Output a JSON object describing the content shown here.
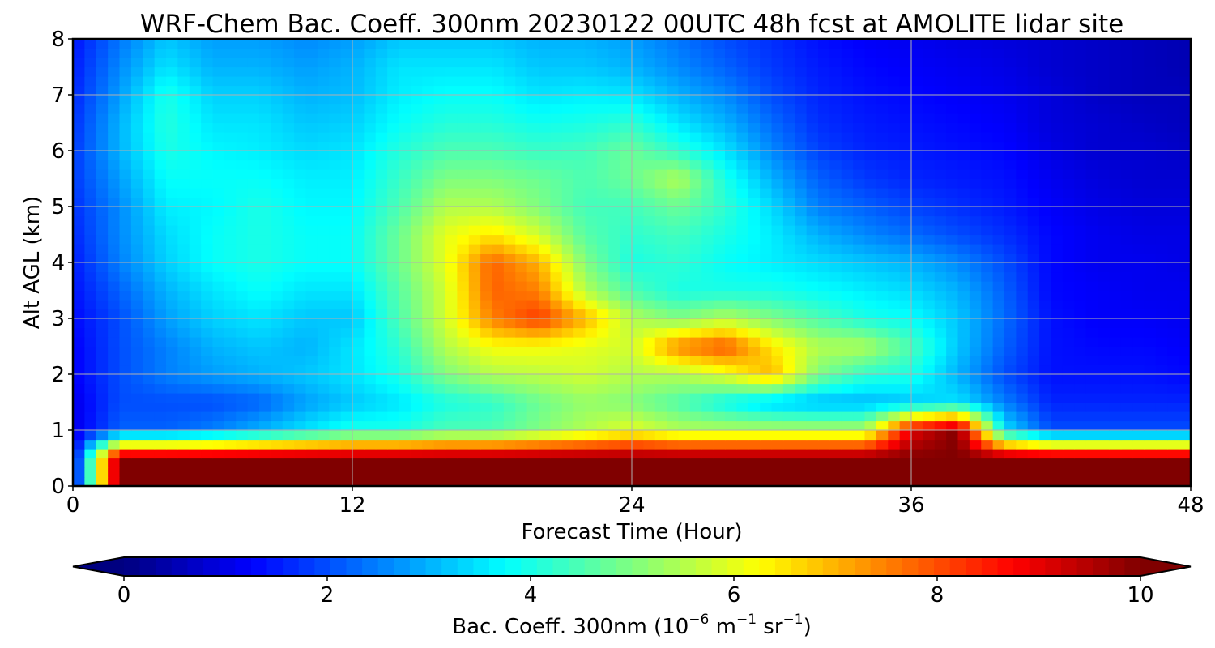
{
  "chart_data": {
    "type": "heatmap",
    "title": "WRF-Chem Bac. Coeff. 300nm  20230122 00UTC 48h fcst at AMOLITE lidar site",
    "xlabel": "Forecast Time (Hour)",
    "ylabel": "Alt AGL (km)",
    "xlim": [
      0,
      48
    ],
    "ylim": [
      0,
      8
    ],
    "x_ticks": [
      "0",
      "12",
      "24",
      "36",
      "48"
    ],
    "y_ticks": [
      "0",
      "1",
      "2",
      "3",
      "4",
      "5",
      "6",
      "7",
      "8"
    ],
    "grid": true,
    "colormap": "jet",
    "colorbar": {
      "label_main": "Bac. Coeff. 300nm  (10",
      "label_exp1": "−6",
      "label_mid": " m",
      "label_exp2": "−1",
      "label_mid2": " sr",
      "label_exp3": "−1",
      "label_end": ")",
      "ticks": [
        "0",
        "2",
        "4",
        "6",
        "8",
        "10"
      ],
      "range": [
        0,
        10
      ],
      "extend": "both"
    },
    "x": [
      0,
      2,
      4,
      6,
      8,
      10,
      12,
      14,
      16,
      18,
      20,
      22,
      24,
      26,
      28,
      30,
      32,
      34,
      36,
      38,
      40,
      42,
      44,
      46,
      48
    ],
    "y": [
      0,
      0.5,
      1,
      1.5,
      2,
      2.5,
      3,
      3.5,
      4,
      4.5,
      5,
      5.5,
      6,
      6.5,
      7,
      7.5,
      8
    ],
    "values": [
      [
        1,
        10,
        10,
        10,
        10,
        10,
        10,
        10,
        10,
        10,
        10,
        10,
        10,
        10,
        10,
        10,
        10,
        10,
        10,
        10,
        10,
        10,
        10,
        10,
        10
      ],
      [
        1,
        10,
        10,
        10,
        10,
        10,
        10,
        10,
        10,
        10,
        10,
        10,
        10,
        10,
        10,
        10,
        10,
        10,
        10,
        10,
        10,
        10,
        10,
        10,
        10
      ],
      [
        1,
        2.2,
        2.2,
        2.5,
        3,
        3.5,
        4,
        4,
        4.5,
        4.5,
        5,
        5.5,
        6,
        5.5,
        5.5,
        5.5,
        5.5,
        5.5,
        9,
        10,
        3.5,
        2,
        2,
        2,
        2
      ],
      [
        1,
        2,
        2,
        2,
        2.2,
        2.8,
        3.2,
        3.5,
        4,
        4.2,
        4.8,
        5.2,
        5,
        4.5,
        3.8,
        3.2,
        3,
        3,
        3.2,
        3.5,
        2.5,
        1.6,
        1.6,
        1.6,
        1.6
      ],
      [
        1.2,
        2,
        2.5,
        2.8,
        3,
        3.2,
        3.5,
        4,
        5,
        5.5,
        5.6,
        5.8,
        5.5,
        5.5,
        6,
        7,
        5,
        4.2,
        4,
        3,
        2,
        1.4,
        1.4,
        1.4,
        1.3
      ],
      [
        1.2,
        2,
        2.5,
        3,
        3.2,
        3,
        3.5,
        4.2,
        5.5,
        6.2,
        6.2,
        6,
        5.8,
        7.5,
        8,
        6.5,
        5.5,
        5.5,
        4.5,
        3.2,
        2.2,
        1.4,
        1.3,
        1.3,
        1.2
      ],
      [
        1.3,
        2,
        2.8,
        3.3,
        3.5,
        3.2,
        3.2,
        4.5,
        5.8,
        7.5,
        8.2,
        7,
        5.5,
        5,
        5.5,
        5,
        4.5,
        4,
        3.8,
        3.2,
        2.3,
        1.4,
        1.2,
        1.2,
        1.1
      ],
      [
        1.4,
        2.2,
        3,
        3.5,
        3.8,
        3.5,
        3.5,
        4.6,
        5.8,
        7.8,
        7.5,
        5.5,
        4.5,
        4,
        4,
        4,
        3.8,
        3.6,
        3.4,
        3,
        2.2,
        1.3,
        1.2,
        1.1,
        1.1
      ],
      [
        1.5,
        2.5,
        3.3,
        3.8,
        4,
        3.8,
        3.8,
        4.8,
        6,
        7.8,
        7,
        5,
        4,
        4.2,
        3.8,
        3.6,
        3.4,
        3.2,
        3,
        2.6,
        2,
        1.3,
        1.1,
        1.1,
        1
      ],
      [
        1.6,
        2.6,
        3.4,
        3.8,
        4,
        3.8,
        3.8,
        4.8,
        6,
        6.5,
        5.8,
        4.6,
        4.2,
        4.4,
        4,
        3.6,
        3,
        2.6,
        2.3,
        2,
        1.7,
        1.3,
        1.1,
        1,
        1
      ],
      [
        1.7,
        2.6,
        3.6,
        3.7,
        4,
        3.7,
        3.7,
        4.5,
        5.5,
        5.5,
        5,
        4.4,
        4.4,
        4.8,
        4.2,
        3.4,
        2.5,
        2.2,
        1.9,
        1.7,
        1.5,
        1.2,
        1,
        0.9,
        0.9
      ],
      [
        1.8,
        2.8,
        3.8,
        3.8,
        3.8,
        3.6,
        3.6,
        4.3,
        5,
        5,
        4.8,
        4.5,
        4.8,
        5.5,
        4,
        3,
        2.2,
        1.8,
        1.6,
        1.5,
        1.4,
        1.1,
        0.9,
        0.8,
        0.8
      ],
      [
        1.8,
        3,
        4,
        3.7,
        3.6,
        3.4,
        3.5,
        4.1,
        4.5,
        4.5,
        4.3,
        4.4,
        4.8,
        4.2,
        3.5,
        2.6,
        1.9,
        1.6,
        1.5,
        1.4,
        1.3,
        1,
        0.8,
        0.8,
        0.7
      ],
      [
        1.7,
        3,
        4.1,
        3.5,
        3.5,
        3.2,
        3.3,
        3.8,
        4.1,
        4.1,
        3.9,
        4,
        4.2,
        3.5,
        3,
        2.3,
        1.7,
        1.5,
        1.4,
        1.3,
        1.2,
        0.9,
        0.8,
        0.7,
        0.6
      ],
      [
        1.6,
        2.8,
        4,
        3.3,
        3.3,
        3,
        3.1,
        3.6,
        3.8,
        3.8,
        3.5,
        3.6,
        3.5,
        3,
        2.6,
        2,
        1.6,
        1.4,
        1.3,
        1.2,
        1.1,
        0.9,
        0.7,
        0.6,
        0.6
      ],
      [
        1.5,
        2.6,
        3.5,
        3,
        3,
        2.8,
        3,
        3.5,
        3.5,
        3.5,
        3.2,
        3.2,
        3,
        2.6,
        2.2,
        1.8,
        1.5,
        1.3,
        1.2,
        1.1,
        1,
        0.8,
        0.7,
        0.6,
        0.5
      ],
      [
        1.4,
        2.4,
        3.2,
        2.8,
        2.8,
        2.6,
        2.8,
        3.2,
        3.2,
        3.2,
        3,
        3,
        2.8,
        2.4,
        2,
        1.7,
        1.4,
        1.2,
        1.1,
        1,
        0.9,
        0.8,
        0.7,
        0.6,
        0.5
      ]
    ]
  }
}
